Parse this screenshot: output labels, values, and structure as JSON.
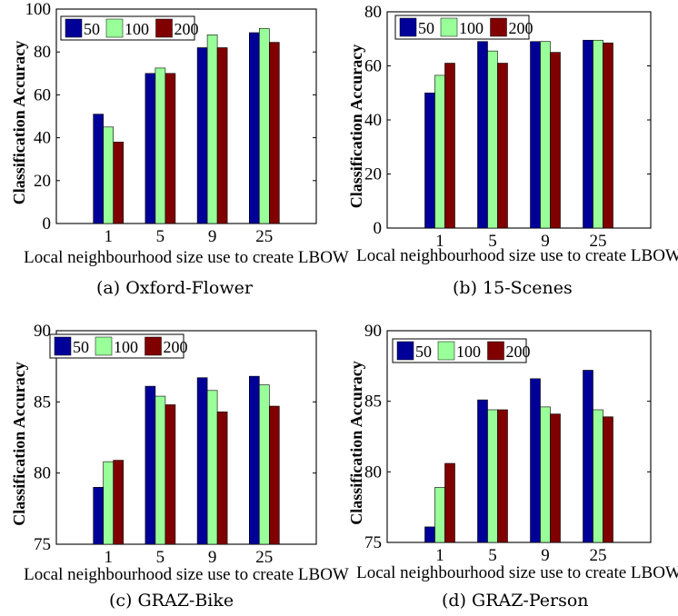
{
  "panels": [
    {
      "caption": "(a)  Oxford-Flower"
    },
    {
      "caption": "(b)  15-Scenes"
    },
    {
      "caption": "(c)  GRAZ-Bike"
    },
    {
      "caption": "(d)  GRAZ-Person"
    }
  ],
  "colors": {
    "s50": "#000099",
    "s100": "#99ff99",
    "s200": "#800000"
  },
  "chart_data": [
    {
      "type": "bar",
      "title": "",
      "xlabel": "Local neighbourhood size use to create LBOW",
      "ylabel": "Classification Accuracy",
      "categories": [
        "1",
        "5",
        "9",
        "25"
      ],
      "ylim": [
        0,
        100
      ],
      "yticks": [
        "0",
        "20",
        "40",
        "60",
        "80",
        "100"
      ],
      "legend_position": "top-left",
      "series": [
        {
          "name": "50",
          "values": [
            51,
            70,
            82,
            89
          ]
        },
        {
          "name": "100",
          "values": [
            45,
            72.5,
            88,
            91
          ]
        },
        {
          "name": "200",
          "values": [
            38,
            70,
            82,
            84.5
          ]
        }
      ]
    },
    {
      "type": "bar",
      "title": "",
      "xlabel": "Local neighbourhood size use to create LBOW",
      "ylabel": "Classification Accuracy",
      "categories": [
        "1",
        "5",
        "9",
        "25"
      ],
      "ylim": [
        0,
        80
      ],
      "yticks": [
        "0",
        "20",
        "40",
        "60",
        "80"
      ],
      "legend_position": "top-left",
      "series": [
        {
          "name": "50",
          "values": [
            50,
            69,
            69,
            69.5
          ]
        },
        {
          "name": "100",
          "values": [
            56.5,
            65.5,
            69,
            69.5
          ]
        },
        {
          "name": "200",
          "values": [
            61,
            61,
            65,
            68.5
          ]
        }
      ]
    },
    {
      "type": "bar",
      "title": "",
      "xlabel": "Local neighbourhood size use to create LBOW",
      "ylabel": "Classification Accuracy",
      "categories": [
        "1",
        "5",
        "9",
        "25"
      ],
      "ylim": [
        75,
        90
      ],
      "yticks": [
        "75",
        "80",
        "85",
        "90"
      ],
      "legend_position": "top-left",
      "series": [
        {
          "name": "50",
          "values": [
            79,
            86.1,
            86.7,
            86.8
          ]
        },
        {
          "name": "100",
          "values": [
            80.8,
            85.4,
            85.8,
            86.2
          ]
        },
        {
          "name": "200",
          "values": [
            80.9,
            84.8,
            84.3,
            84.7
          ]
        }
      ]
    },
    {
      "type": "bar",
      "title": "",
      "xlabel": "Local neighbourhood size use to create LBOW",
      "ylabel": "Classification Accuracy",
      "categories": [
        "1",
        "5",
        "9",
        "25"
      ],
      "ylim": [
        75,
        90
      ],
      "yticks": [
        "75",
        "80",
        "85",
        "90"
      ],
      "legend_position": "top-left",
      "series": [
        {
          "name": "50",
          "values": [
            76.1,
            85.1,
            86.6,
            87.2
          ]
        },
        {
          "name": "100",
          "values": [
            78.9,
            84.4,
            84.6,
            84.4
          ]
        },
        {
          "name": "200",
          "values": [
            80.6,
            84.4,
            84.1,
            83.9
          ]
        }
      ]
    }
  ]
}
